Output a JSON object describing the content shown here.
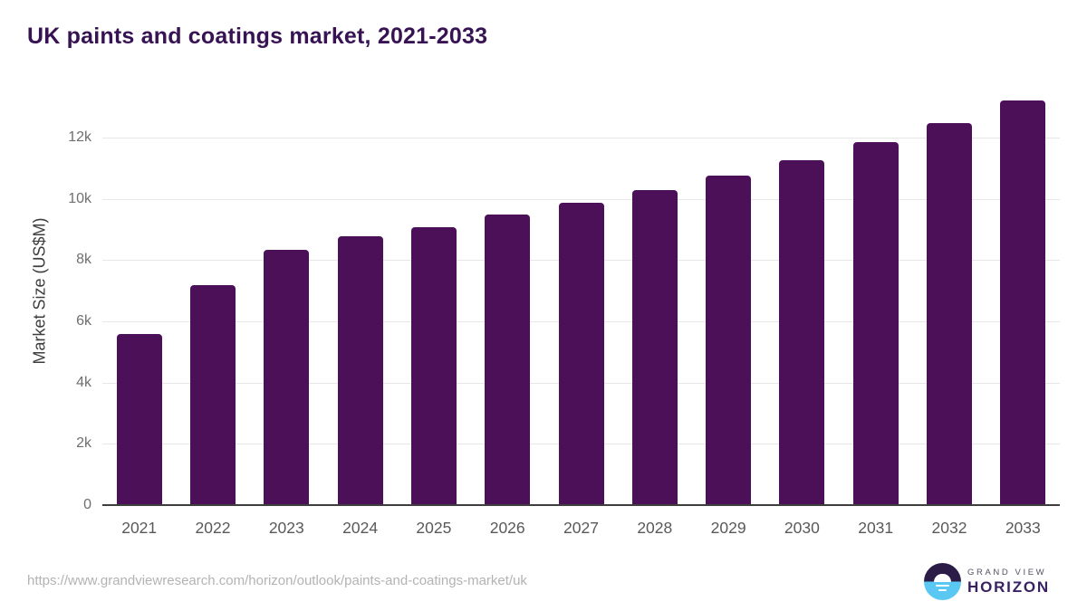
{
  "page": {
    "title": "UK paints and coatings market, 2021-2033"
  },
  "chart_data": {
    "type": "bar",
    "title": "UK paints and coatings market, 2021-2033",
    "categories": [
      "2021",
      "2022",
      "2023",
      "2024",
      "2025",
      "2026",
      "2027",
      "2028",
      "2029",
      "2030",
      "2031",
      "2032",
      "2033"
    ],
    "values": [
      5580,
      7190,
      8340,
      8780,
      9080,
      9480,
      9870,
      10290,
      10760,
      11260,
      11850,
      12480,
      13220
    ],
    "xlabel": "",
    "ylabel": "Market Size (US$M)",
    "ylim": [
      0,
      13500
    ],
    "yticks": [
      0,
      2000,
      4000,
      6000,
      8000,
      10000,
      12000
    ],
    "ytick_labels": [
      "0",
      "2k",
      "4k",
      "6k",
      "8k",
      "10k",
      "12k"
    ],
    "grid": true,
    "legend": false,
    "bar_color": "#4b1058"
  },
  "colors": {
    "title": "#371353",
    "bar": "#4b1058",
    "gridline": "#e7e7e7",
    "axis_line": "#3e3e3e",
    "y_tick": "#6f6f6f",
    "x_tick": "#595959",
    "url_text": "#b3b3b3",
    "logo_dark": "#2b1b47",
    "logo_blue": "#5ac8f2",
    "logo_horizon_text": "#3a2260"
  },
  "footer": {
    "source_url": "https://www.grandviewresearch.com/horizon/outlook/paints-and-coatings-market/uk",
    "logo_top": "GRAND VIEW",
    "logo_bottom": "HORIZON"
  }
}
